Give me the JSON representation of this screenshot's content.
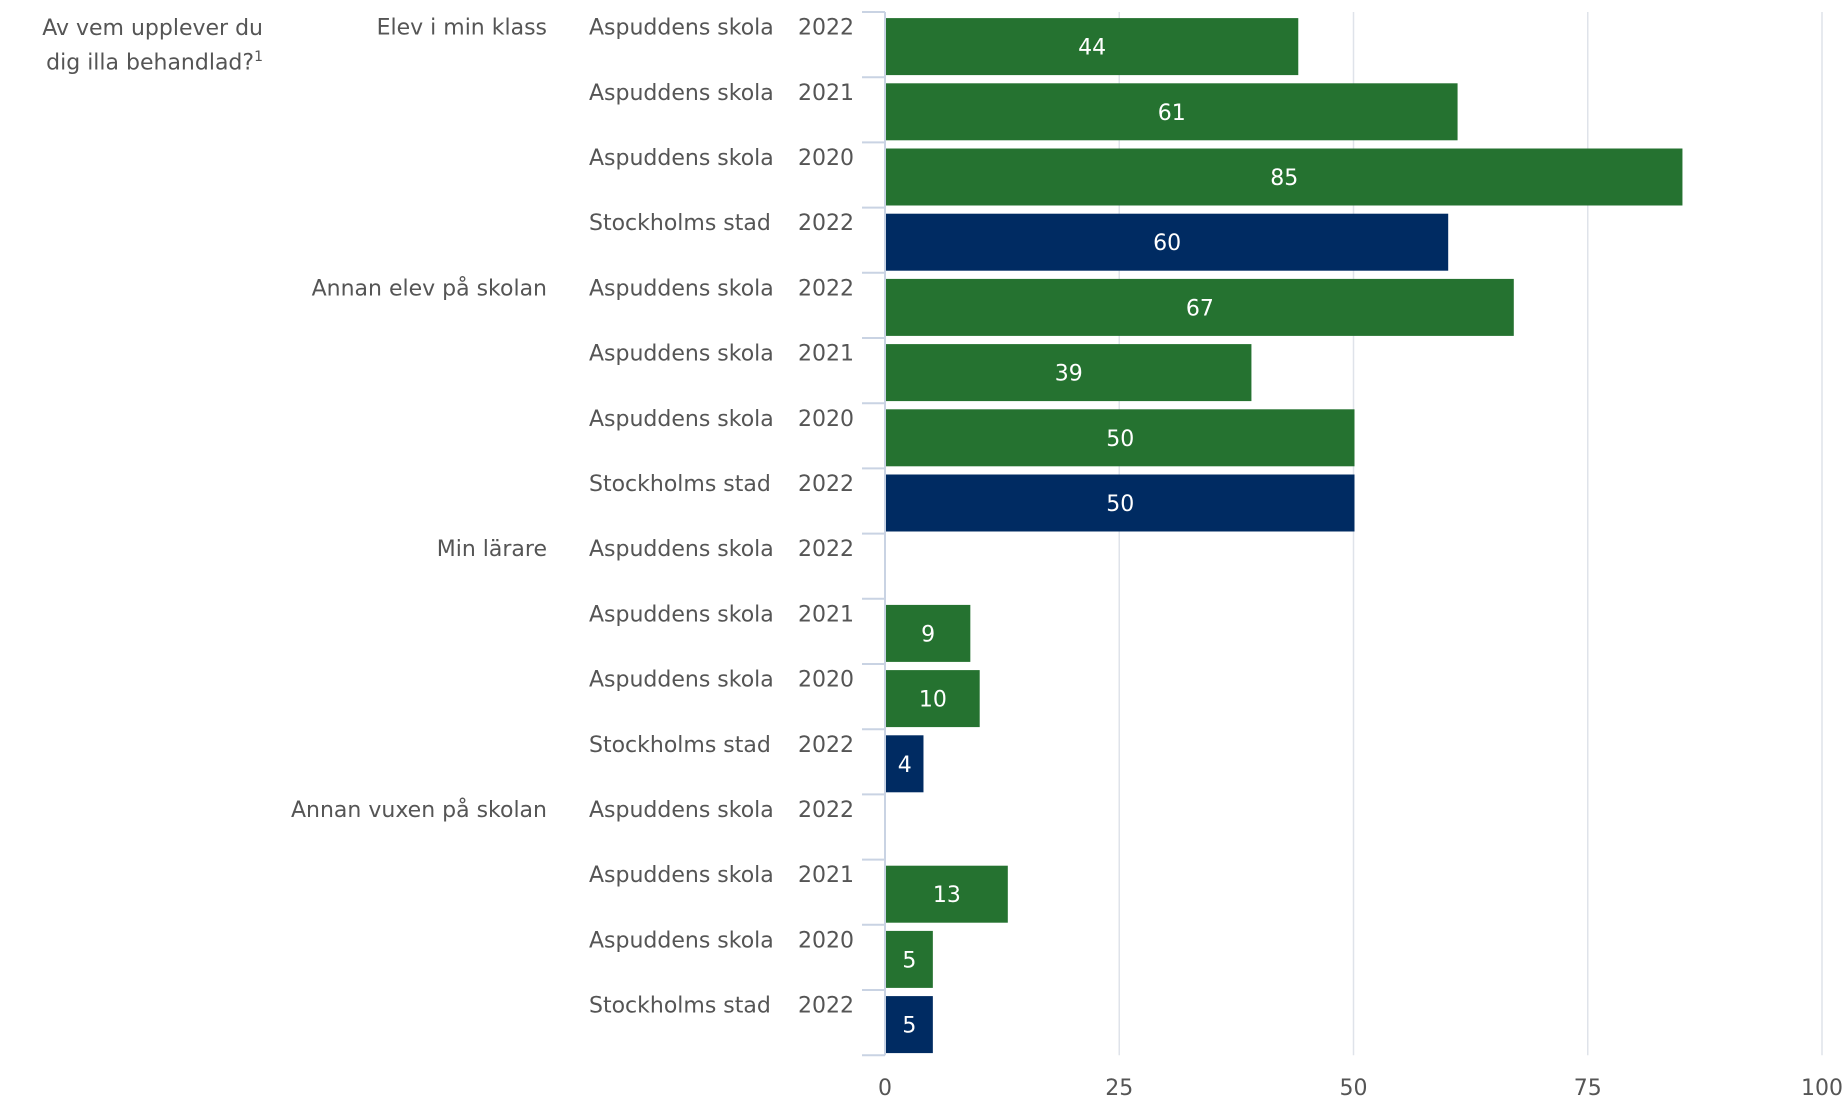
{
  "chart_data": {
    "type": "bar",
    "orientation": "horizontal",
    "title": "Av vem upplever du dig illa behandlad?",
    "title_footnote": "1",
    "xlim": [
      0,
      100
    ],
    "x_ticks": [
      "0",
      "25",
      "50",
      "75",
      "100"
    ],
    "grid": true,
    "colors": {
      "school": "#257230",
      "city": "#002b62"
    },
    "groups": [
      {
        "label": "Elev i min klass",
        "rows": [
          {
            "unit": "Aspuddens skola",
            "year": "2022",
            "value": 44,
            "label": "44",
            "kind": "school"
          },
          {
            "unit": "Aspuddens skola",
            "year": "2021",
            "value": 61,
            "label": "61",
            "kind": "school"
          },
          {
            "unit": "Aspuddens skola",
            "year": "2020",
            "value": 85,
            "label": "85",
            "kind": "school"
          },
          {
            "unit": "Stockholms stad",
            "year": "2022",
            "value": 60,
            "label": "60",
            "kind": "city"
          }
        ]
      },
      {
        "label": "Annan elev på skolan",
        "rows": [
          {
            "unit": "Aspuddens skola",
            "year": "2022",
            "value": 67,
            "label": "67",
            "kind": "school"
          },
          {
            "unit": "Aspuddens skola",
            "year": "2021",
            "value": 39,
            "label": "39",
            "kind": "school"
          },
          {
            "unit": "Aspuddens skola",
            "year": "2020",
            "value": 50,
            "label": "50",
            "kind": "school"
          },
          {
            "unit": "Stockholms stad",
            "year": "2022",
            "value": 50,
            "label": "50",
            "kind": "city"
          }
        ]
      },
      {
        "label": "Min lärare",
        "rows": [
          {
            "unit": "Aspuddens skola",
            "year": "2022",
            "value": null,
            "label": "",
            "kind": "school"
          },
          {
            "unit": "Aspuddens skola",
            "year": "2021",
            "value": 9,
            "label": "9",
            "kind": "school"
          },
          {
            "unit": "Aspuddens skola",
            "year": "2020",
            "value": 10,
            "label": "10",
            "kind": "school"
          },
          {
            "unit": "Stockholms stad",
            "year": "2022",
            "value": 4,
            "label": "4",
            "kind": "city"
          }
        ]
      },
      {
        "label": "Annan vuxen på skolan",
        "rows": [
          {
            "unit": "Aspuddens skola",
            "year": "2022",
            "value": null,
            "label": "",
            "kind": "school"
          },
          {
            "unit": "Aspuddens skola",
            "year": "2021",
            "value": 13,
            "label": "13",
            "kind": "school"
          },
          {
            "unit": "Aspuddens skola",
            "year": "2020",
            "value": 5,
            "label": "5",
            "kind": "school"
          },
          {
            "unit": "Stockholms stad",
            "year": "2022",
            "value": 5,
            "label": "5",
            "kind": "city"
          }
        ]
      }
    ]
  }
}
